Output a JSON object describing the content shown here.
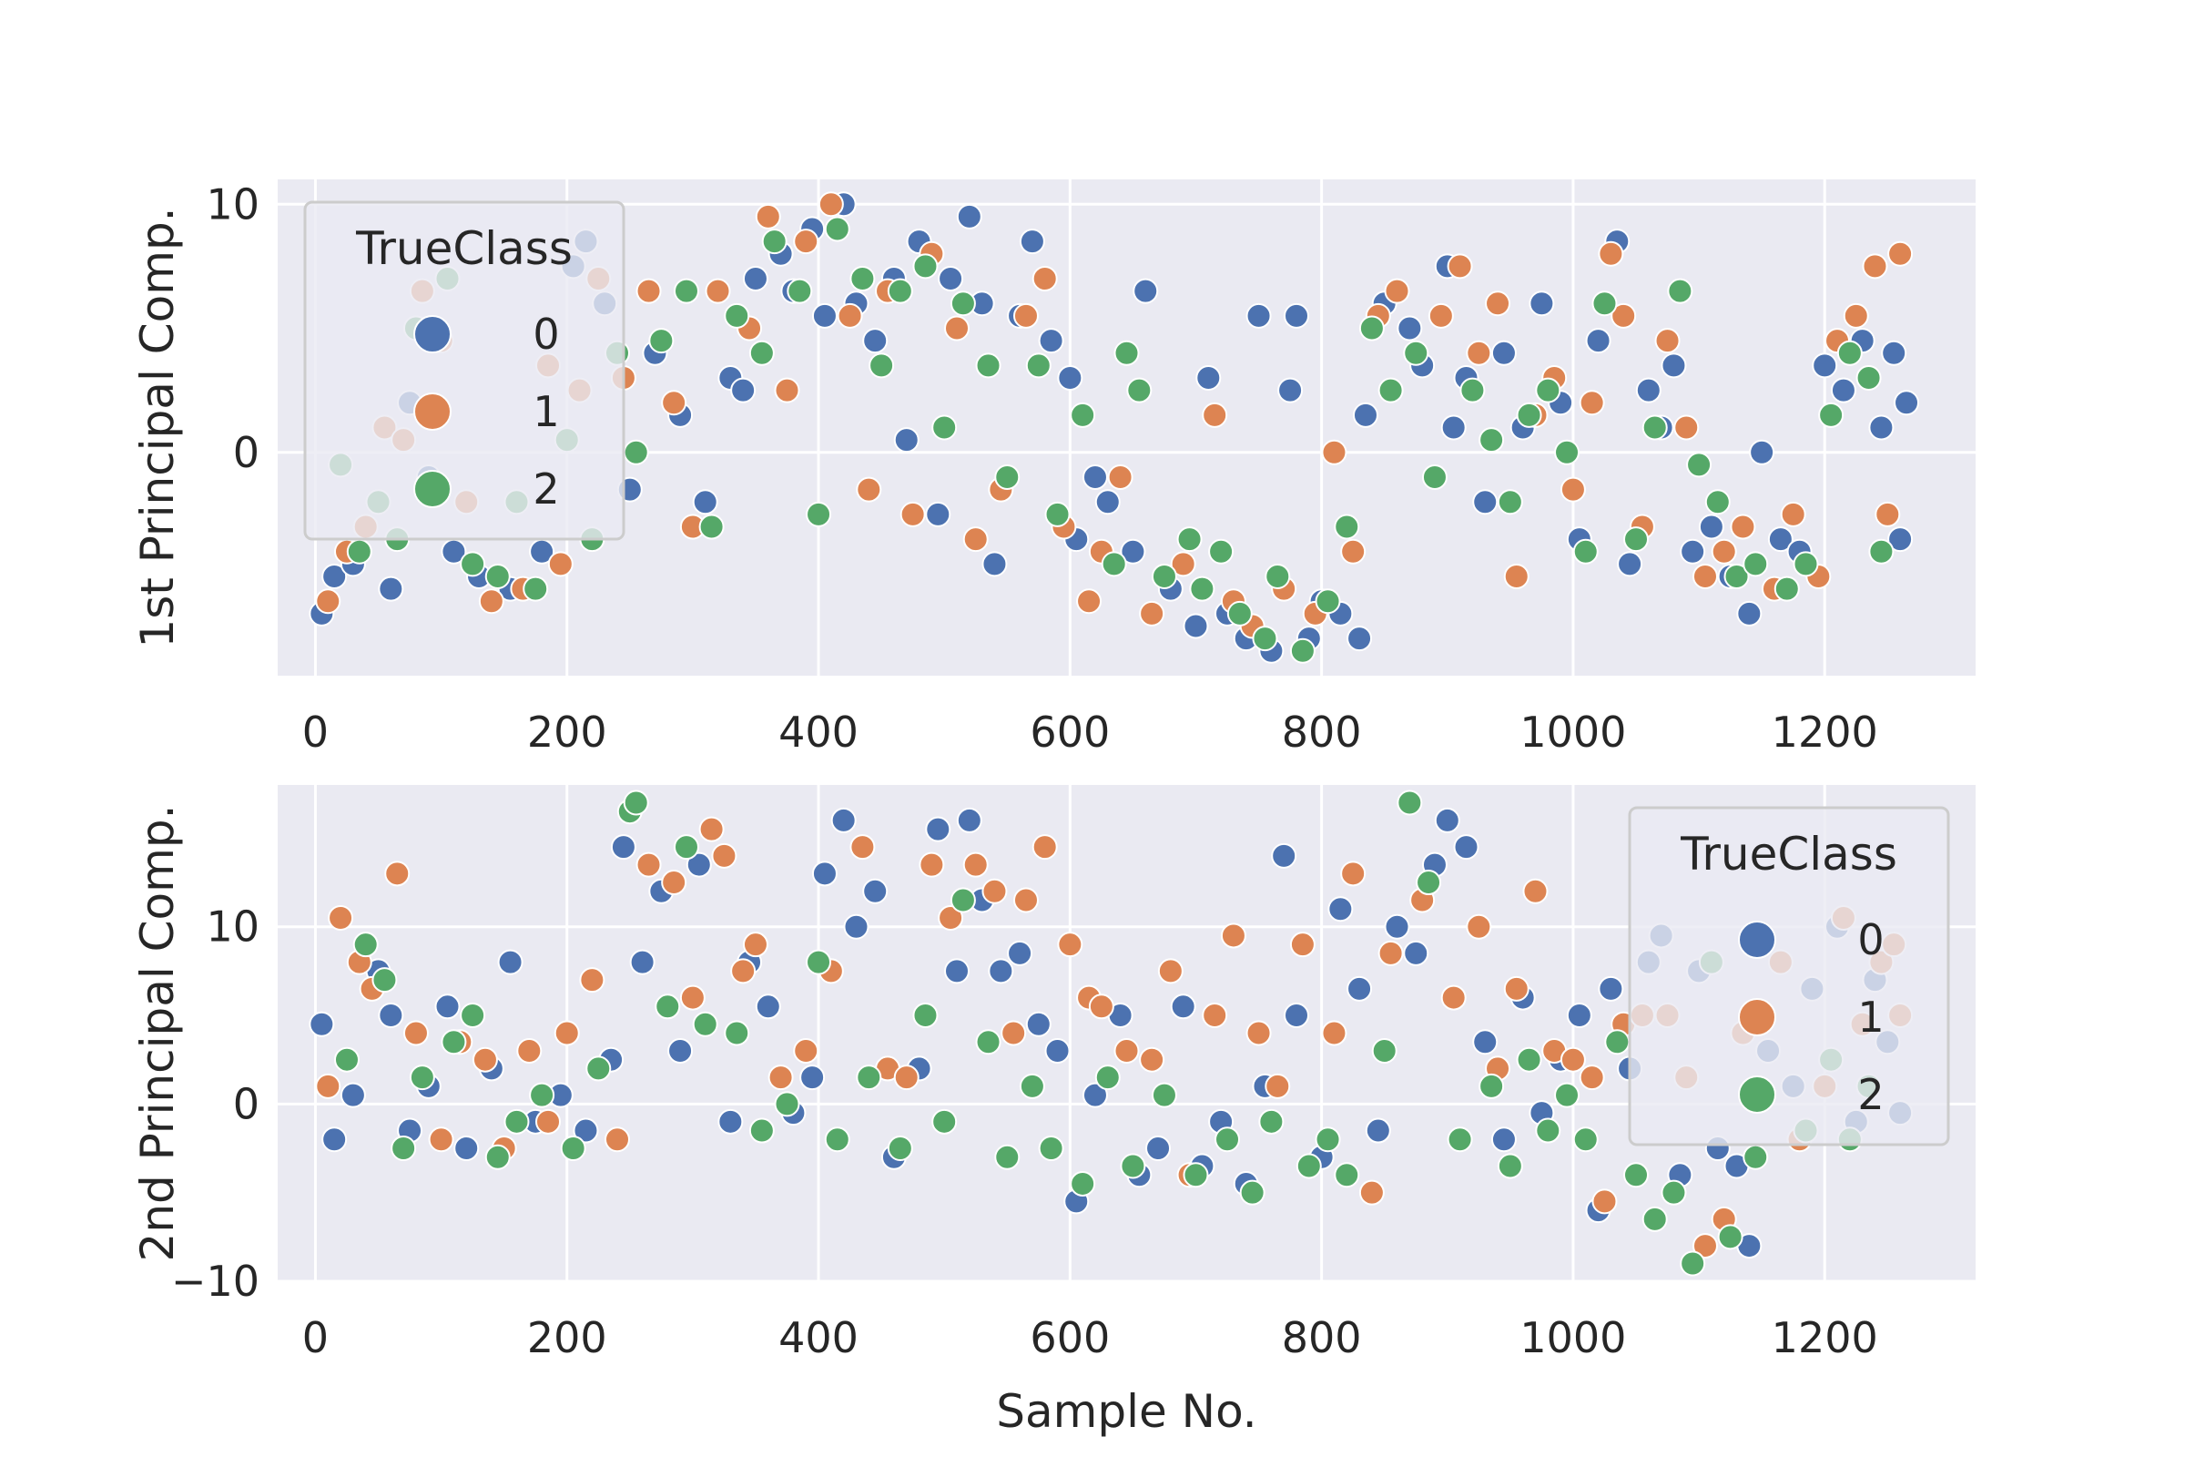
{
  "chart_data": [
    {
      "type": "scatter",
      "xlabel": "",
      "ylabel": "1st Principal Comp.",
      "xlim": [
        -30,
        1320
      ],
      "ylim": [
        -9,
        11
      ],
      "xticks": [
        0,
        200,
        400,
        600,
        800,
        1000,
        1200
      ],
      "yticks": [
        0,
        10
      ],
      "grid": true,
      "legend": {
        "title": "TrueClass",
        "placement": "upper-left",
        "entries": [
          "0",
          "1",
          "2"
        ]
      },
      "series": [
        {
          "name": "0",
          "color": "#4c72b0",
          "x": [
            5,
            15,
            30,
            60,
            75,
            90,
            110,
            130,
            155,
            180,
            205,
            215,
            230,
            250,
            270,
            290,
            310,
            330,
            340,
            350,
            370,
            380,
            395,
            405,
            420,
            430,
            445,
            460,
            470,
            480,
            495,
            505,
            520,
            530,
            540,
            560,
            570,
            585,
            600,
            605,
            620,
            630,
            650,
            660,
            680,
            700,
            710,
            725,
            740,
            750,
            760,
            775,
            780,
            790,
            800,
            815,
            830,
            835,
            850,
            870,
            880,
            900,
            905,
            915,
            930,
            945,
            960,
            975,
            990,
            1005,
            1020,
            1035,
            1045,
            1060,
            1070,
            1080,
            1095,
            1110,
            1125,
            1140,
            1150,
            1165,
            1180,
            1200,
            1215,
            1230,
            1245,
            1255,
            1260,
            1265
          ],
          "y": [
            -6.5,
            -5.0,
            -4.5,
            -5.5,
            2.0,
            -1.0,
            -4.0,
            -5.0,
            -5.5,
            -4.0,
            7.5,
            8.5,
            6.0,
            -1.5,
            4.0,
            1.5,
            -2.0,
            3.0,
            2.5,
            7.0,
            8.0,
            6.5,
            9.0,
            5.5,
            10.0,
            6.0,
            4.5,
            7.0,
            0.5,
            8.5,
            -2.5,
            7.0,
            9.5,
            6.0,
            -4.5,
            5.5,
            8.5,
            4.5,
            3.0,
            -3.5,
            -1.0,
            -2.0,
            -4.0,
            6.5,
            -5.5,
            -7.0,
            3.0,
            -6.5,
            -7.5,
            5.5,
            -8.0,
            2.5,
            5.5,
            -7.5,
            -6.0,
            -6.5,
            -7.5,
            1.5,
            6.0,
            5.0,
            3.5,
            7.5,
            1.0,
            3.0,
            -2.0,
            4.0,
            1.0,
            6.0,
            2.0,
            -3.5,
            4.5,
            8.5,
            -4.5,
            2.5,
            1.0,
            3.5,
            -4.0,
            -3.0,
            -5.0,
            -6.5,
            0.0,
            -3.5,
            -4.0,
            3.5,
            2.5,
            4.5,
            1.0,
            4.0,
            -3.5,
            2.0
          ]
        },
        {
          "name": "1",
          "color": "#dd8452",
          "x": [
            10,
            25,
            40,
            55,
            70,
            85,
            100,
            120,
            140,
            165,
            185,
            195,
            210,
            225,
            245,
            265,
            285,
            300,
            320,
            345,
            360,
            375,
            390,
            410,
            425,
            440,
            455,
            475,
            490,
            510,
            525,
            545,
            565,
            580,
            595,
            615,
            625,
            640,
            665,
            690,
            715,
            730,
            745,
            770,
            795,
            810,
            825,
            845,
            860,
            895,
            910,
            925,
            940,
            955,
            970,
            985,
            1000,
            1015,
            1030,
            1040,
            1055,
            1075,
            1090,
            1105,
            1120,
            1135,
            1160,
            1175,
            1195,
            1210,
            1225,
            1240,
            1250,
            1260
          ],
          "y": [
            -6.0,
            -4.0,
            -3.0,
            1.0,
            0.5,
            6.5,
            4.5,
            -2.0,
            -6.0,
            -5.5,
            3.5,
            -4.5,
            2.5,
            7.0,
            3.0,
            6.5,
            2.0,
            -3.0,
            6.5,
            5.0,
            9.5,
            2.5,
            8.5,
            10.0,
            5.5,
            -1.5,
            6.5,
            -2.5,
            8.0,
            5.0,
            -3.5,
            -1.5,
            5.5,
            7.0,
            -3.0,
            -6.0,
            -4.0,
            -1.0,
            -6.5,
            -4.5,
            1.5,
            -6.0,
            -7.0,
            -5.5,
            -6.5,
            0.0,
            -4.0,
            5.5,
            6.5,
            5.5,
            7.5,
            4.0,
            6.0,
            -5.0,
            1.5,
            3.0,
            -1.5,
            2.0,
            8.0,
            5.5,
            -3.0,
            4.5,
            1.0,
            -5.0,
            -4.0,
            -3.0,
            -5.5,
            -2.5,
            -5.0,
            4.5,
            5.5,
            7.5,
            -2.5,
            8.0
          ]
        },
        {
          "name": "2",
          "color": "#55a868",
          "x": [
            20,
            35,
            50,
            65,
            80,
            95,
            105,
            125,
            145,
            160,
            175,
            200,
            220,
            240,
            255,
            275,
            295,
            315,
            335,
            355,
            365,
            385,
            400,
            415,
            435,
            450,
            465,
            485,
            500,
            515,
            535,
            550,
            575,
            590,
            610,
            635,
            645,
            655,
            675,
            695,
            705,
            720,
            735,
            755,
            765,
            785,
            805,
            820,
            840,
            855,
            875,
            890,
            920,
            935,
            950,
            965,
            980,
            995,
            1010,
            1025,
            1050,
            1065,
            1085,
            1100,
            1115,
            1130,
            1145,
            1170,
            1185,
            1205,
            1220,
            1235,
            1245
          ],
          "y": [
            -0.5,
            -4.0,
            -2.0,
            -3.5,
            5.0,
            1.5,
            7.0,
            -4.5,
            -5.0,
            -2.0,
            -5.5,
            0.5,
            -3.5,
            4.0,
            0.0,
            4.5,
            6.5,
            -3.0,
            5.5,
            4.0,
            8.5,
            6.5,
            -2.5,
            9.0,
            7.0,
            3.5,
            6.5,
            7.5,
            1.0,
            6.0,
            3.5,
            -1.0,
            3.5,
            -2.5,
            1.5,
            -4.5,
            4.0,
            2.5,
            -5.0,
            -3.5,
            -5.5,
            -4.0,
            -6.5,
            -7.5,
            -5.0,
            -8.0,
            -6.0,
            -3.0,
            5.0,
            2.5,
            4.0,
            -1.0,
            2.5,
            0.5,
            -2.0,
            1.5,
            2.5,
            0.0,
            -4.0,
            6.0,
            -3.5,
            1.0,
            6.5,
            -0.5,
            -2.0,
            -5.0,
            -4.5,
            -5.5,
            -4.5,
            1.5,
            4.0,
            3.0,
            -4.0
          ]
        }
      ]
    },
    {
      "type": "scatter",
      "xlabel": "Sample No.",
      "ylabel": "2nd Principal Comp.",
      "xlim": [
        -30,
        1320
      ],
      "ylim": [
        -10,
        18
      ],
      "xticks": [
        0,
        200,
        400,
        600,
        800,
        1000,
        1200
      ],
      "yticks": [
        -10,
        0,
        10
      ],
      "ytick_labels": [
        "−10",
        "0",
        "10"
      ],
      "grid": true,
      "legend": {
        "title": "TrueClass",
        "placement": "upper-right",
        "entries": [
          "0",
          "1",
          "2"
        ]
      },
      "series": [
        {
          "name": "0",
          "color": "#4c72b0",
          "x": [
            5,
            15,
            30,
            50,
            60,
            75,
            90,
            105,
            120,
            140,
            155,
            175,
            195,
            215,
            235,
            245,
            260,
            275,
            290,
            305,
            330,
            345,
            360,
            380,
            395,
            405,
            420,
            430,
            445,
            460,
            480,
            495,
            510,
            520,
            530,
            545,
            560,
            575,
            590,
            605,
            620,
            640,
            655,
            670,
            690,
            705,
            720,
            740,
            755,
            770,
            780,
            800,
            815,
            830,
            845,
            860,
            875,
            890,
            900,
            915,
            930,
            945,
            960,
            975,
            990,
            1005,
            1020,
            1030,
            1045,
            1060,
            1070,
            1085,
            1100,
            1115,
            1130,
            1140,
            1155,
            1175,
            1190,
            1210,
            1225,
            1240,
            1250,
            1260
          ],
          "y": [
            4.5,
            -2.0,
            0.5,
            7.5,
            5.0,
            -1.5,
            1.0,
            5.5,
            -2.5,
            2.0,
            8.0,
            -1.0,
            0.5,
            -1.5,
            2.5,
            14.5,
            8.0,
            12.0,
            3.0,
            13.5,
            -1.0,
            8.0,
            5.5,
            -0.5,
            1.5,
            13.0,
            16.0,
            10.0,
            12.0,
            -3.0,
            2.0,
            15.5,
            7.5,
            16.0,
            11.5,
            7.5,
            8.5,
            4.5,
            3.0,
            -5.5,
            0.5,
            5.0,
            -4.0,
            -2.5,
            5.5,
            -3.5,
            -1.0,
            -4.5,
            1.0,
            14.0,
            5.0,
            -3.0,
            11.0,
            6.5,
            -1.5,
            10.0,
            8.5,
            13.5,
            16.0,
            14.5,
            3.5,
            -2.0,
            6.0,
            -0.5,
            2.5,
            5.0,
            -6.0,
            6.5,
            2.0,
            8.0,
            9.5,
            -4.0,
            7.5,
            -2.5,
            -3.5,
            -8.0,
            3.0,
            1.0,
            6.5,
            10.0,
            -1.0,
            7.0,
            3.5,
            -0.5
          ]
        },
        {
          "name": "1",
          "color": "#dd8452",
          "x": [
            10,
            20,
            35,
            45,
            65,
            80,
            100,
            115,
            135,
            150,
            170,
            185,
            200,
            220,
            240,
            265,
            285,
            300,
            315,
            325,
            340,
            350,
            370,
            390,
            410,
            435,
            455,
            470,
            490,
            505,
            525,
            540,
            555,
            565,
            580,
            600,
            615,
            625,
            645,
            665,
            680,
            695,
            715,
            730,
            750,
            765,
            785,
            810,
            825,
            840,
            855,
            880,
            905,
            925,
            940,
            955,
            970,
            985,
            1000,
            1015,
            1025,
            1040,
            1055,
            1075,
            1090,
            1105,
            1120,
            1135,
            1165,
            1180,
            1200,
            1215,
            1230,
            1245,
            1255,
            1260
          ],
          "y": [
            1.0,
            10.5,
            8.0,
            6.5,
            13.0,
            4.0,
            -2.0,
            3.5,
            2.5,
            -2.5,
            3.0,
            -1.0,
            4.0,
            7.0,
            -2.0,
            13.5,
            12.5,
            6.0,
            15.5,
            14.0,
            7.5,
            9.0,
            1.5,
            3.0,
            7.5,
            14.5,
            2.0,
            1.5,
            13.5,
            10.5,
            13.5,
            12.0,
            4.0,
            11.5,
            14.5,
            9.0,
            6.0,
            5.5,
            3.0,
            2.5,
            7.5,
            -4.0,
            5.0,
            9.5,
            4.0,
            1.0,
            9.0,
            4.0,
            13.0,
            -5.0,
            8.5,
            11.5,
            6.0,
            10.0,
            2.0,
            6.5,
            12.0,
            3.0,
            2.5,
            1.5,
            -5.5,
            4.5,
            5.0,
            5.0,
            1.5,
            -8.0,
            -6.5,
            4.0,
            8.0,
            -2.0,
            1.0,
            10.5,
            4.5,
            8.0,
            9.0,
            5.0
          ]
        },
        {
          "name": "2",
          "color": "#55a868",
          "x": [
            25,
            40,
            55,
            70,
            85,
            110,
            125,
            145,
            160,
            180,
            205,
            225,
            250,
            255,
            280,
            295,
            310,
            335,
            355,
            375,
            400,
            415,
            440,
            465,
            485,
            500,
            515,
            535,
            550,
            570,
            585,
            610,
            630,
            650,
            675,
            700,
            725,
            745,
            760,
            790,
            805,
            820,
            850,
            870,
            885,
            910,
            935,
            950,
            965,
            980,
            995,
            1010,
            1035,
            1050,
            1065,
            1080,
            1095,
            1110,
            1125,
            1145,
            1185,
            1205,
            1220,
            1235
          ],
          "y": [
            2.5,
            9.0,
            7.0,
            -2.5,
            1.5,
            3.5,
            5.0,
            -3.0,
            -1.0,
            0.5,
            -2.5,
            2.0,
            16.5,
            17.0,
            5.5,
            14.5,
            4.5,
            4.0,
            -1.5,
            0.0,
            8.0,
            -2.0,
            1.5,
            -2.5,
            5.0,
            -1.0,
            11.5,
            3.5,
            -3.0,
            1.0,
            -2.5,
            -4.5,
            1.5,
            -3.5,
            0.5,
            -4.0,
            -2.0,
            -5.0,
            -1.0,
            -3.5,
            -2.0,
            -4.0,
            3.0,
            17.0,
            12.5,
            -2.0,
            1.0,
            -3.5,
            2.5,
            -1.5,
            0.5,
            -2.0,
            3.5,
            -4.0,
            -6.5,
            -5.0,
            -9.0,
            8.0,
            -7.5,
            -3.0,
            -1.5,
            2.5,
            -2.0,
            1.0
          ]
        }
      ]
    }
  ]
}
